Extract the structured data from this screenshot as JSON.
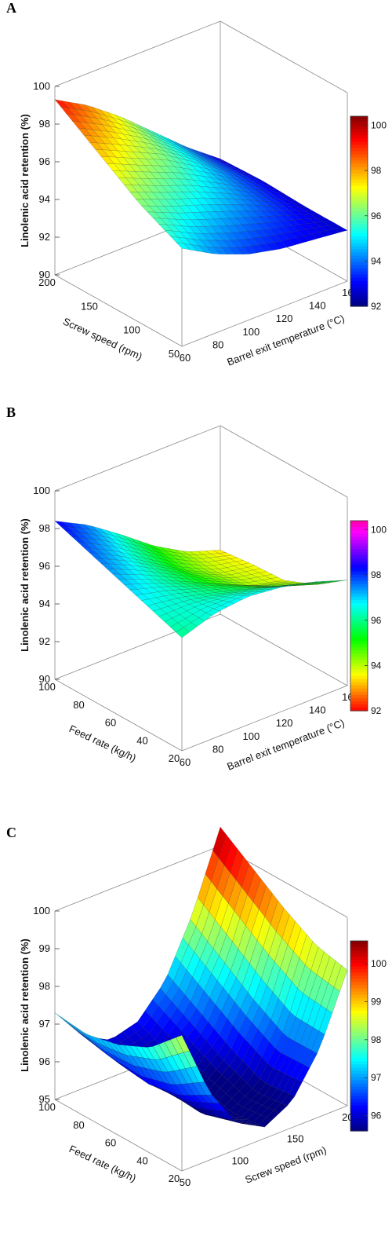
{
  "chart_data": [
    {
      "type": "surface",
      "panel_label": "A",
      "z_label": "Linolenic acid retention (%)",
      "x_label": "Barrel exit temperature (°C)",
      "y_label": "Screw speed (rpm)",
      "x_ticks": [
        "60",
        "80",
        "100",
        "120",
        "140",
        "160"
      ],
      "y_ticks": [
        "50",
        "100",
        "150",
        "200"
      ],
      "z_ticks": [
        "90",
        "92",
        "94",
        "96",
        "98",
        "100"
      ],
      "colorbar_ticks": [
        "92",
        "94",
        "96",
        "98",
        "100"
      ],
      "colormap": "jet",
      "x_range": [
        60,
        160
      ],
      "y_range": [
        50,
        200
      ],
      "z_range": [
        90,
        100
      ],
      "colorbar_range": [
        92,
        100.4
      ],
      "grid": [
        [
          95.2,
          94.2,
          93.5,
          93.1,
          92.9,
          92.7
        ],
        [
          96.3,
          95.6,
          95.0,
          94.3,
          93.5,
          92.7
        ],
        [
          97.8,
          97.0,
          96.2,
          95.1,
          93.9,
          92.8
        ],
        [
          99.3,
          98.3,
          97.0,
          95.5,
          94.0,
          92.7
        ]
      ]
    },
    {
      "type": "surface",
      "panel_label": "B",
      "z_label": "Linolenic acid retention (%)",
      "x_label": "Barrel exit temperature (°C)",
      "y_label": "Feed rate (kg/h)",
      "x_ticks": [
        "60",
        "80",
        "100",
        "120",
        "140",
        "160"
      ],
      "y_ticks": [
        "20",
        "40",
        "60",
        "80",
        "100"
      ],
      "z_ticks": [
        "90",
        "92",
        "94",
        "96",
        "98",
        "100"
      ],
      "colorbar_ticks": [
        "92",
        "94",
        "96",
        "98",
        "100"
      ],
      "colormap": "hsv",
      "x_range": [
        60,
        160
      ],
      "y_range": [
        20,
        100
      ],
      "z_range": [
        90,
        100
      ],
      "colorbar_range": [
        92,
        100.4
      ],
      "grid": [
        [
          96.0,
          96.6,
          96.8,
          96.6,
          96.2,
          95.6
        ],
        [
          96.6,
          96.4,
          96.0,
          95.6,
          95.0,
          94.4
        ],
        [
          97.2,
          96.5,
          95.7,
          94.9,
          94.1,
          93.7
        ],
        [
          97.8,
          96.9,
          95.8,
          94.7,
          93.9,
          93.6
        ],
        [
          98.4,
          97.5,
          96.3,
          95.0,
          94.0,
          93.4
        ]
      ]
    },
    {
      "type": "surface",
      "panel_label": "C",
      "z_label": "Linolenic acid retention (%)",
      "x_label": "Screw speed (rpm)",
      "y_label": "Feed rate (kg/h)",
      "x_ticks": [
        "50",
        "100",
        "150",
        "200"
      ],
      "y_ticks": [
        "20",
        "40",
        "60",
        "80",
        "100"
      ],
      "z_ticks": [
        "95",
        "96",
        "97",
        "98",
        "99",
        "100"
      ],
      "colorbar_ticks": [
        "96",
        "97",
        "98",
        "99",
        "100"
      ],
      "colormap": "jet",
      "x_range": [
        50,
        200
      ],
      "y_range": [
        20,
        100
      ],
      "z_range": [
        95,
        100
      ],
      "colorbar_range": [
        95.6,
        100.6
      ],
      "grid": [
        [
          98.6,
          96.8,
          95.7,
          95.3,
          95.7,
          96.8,
          98.6
        ],
        [
          97.8,
          96.3,
          95.4,
          95.2,
          95.6,
          96.8,
          98.8
        ],
        [
          97.4,
          96.1,
          95.5,
          95.4,
          96.0,
          97.3,
          99.3
        ],
        [
          97.2,
          96.2,
          95.7,
          95.8,
          96.5,
          97.9,
          99.9
        ],
        [
          97.3,
          96.4,
          96.0,
          96.2,
          97.0,
          98.5,
          100.5
        ]
      ]
    }
  ]
}
